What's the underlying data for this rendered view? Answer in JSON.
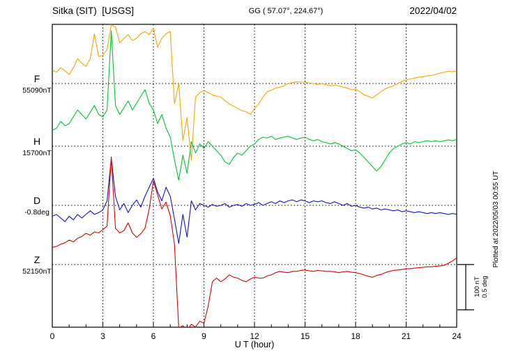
{
  "header": {
    "station_title": "Sitka (SIT)  [USGS]",
    "coords": "GG ( 57.07°, 224.67°)",
    "date": "2022/04/02"
  },
  "side_note": "Plotted at 2022/05/03 00:55 UT",
  "scale_bar": {
    "label_nt": "100 nT",
    "label_deg": "0.5 deg"
  },
  "chart_data": {
    "type": "line",
    "title": "Sitka (SIT) [USGS] magnetogram",
    "subtitle": "GG ( 57.07°, 224.67°)",
    "date": "2022/04/02",
    "xlabel": "U T (hour)",
    "x_range": [
      0,
      24
    ],
    "x_ticks": [
      0,
      3,
      6,
      9,
      12,
      15,
      18,
      21,
      24
    ],
    "x_step_hours": 0.25,
    "grid": "dotted vertical at 3h intervals, dotted horizontal at each trace baseline",
    "legend_position": "left margin, one label per trace",
    "scale": {
      "nT_per_division": 100,
      "deg_per_division": 0.5
    },
    "series": [
      {
        "label": "F",
        "baseline_label": "55090nT",
        "baseline_value": 55090,
        "unit": "nT",
        "color": "#f5a800",
        "offsets": [
          30,
          25,
          35,
          28,
          20,
          35,
          55,
          45,
          38,
          55,
          110,
          60,
          62,
          75,
          130,
          125,
          90,
          100,
          108,
          95,
          100,
          110,
          115,
          108,
          123,
          80,
          100,
          110,
          115,
          -45,
          0,
          -125,
          -75,
          -170,
          -30,
          -20,
          -15,
          -20,
          -25,
          -28,
          -30,
          -38,
          -45,
          -50,
          -55,
          -60,
          -62,
          -68,
          -55,
          -45,
          -30,
          -18,
          -15,
          -10,
          -8,
          -5,
          0,
          2,
          4,
          3,
          3,
          1,
          0,
          -2,
          0,
          -3,
          -5,
          -4,
          -5,
          -8,
          -10,
          -14,
          -12,
          -18,
          -25,
          -28,
          -32,
          -25,
          -18,
          -12,
          -8,
          -5,
          0,
          5,
          8,
          10,
          12,
          14,
          15,
          17,
          18,
          20,
          23,
          25,
          27,
          26,
          28
        ]
      },
      {
        "label": "H",
        "baseline_label": "15700nT",
        "baseline_value": 15700,
        "unit": "nT",
        "color": "#00c832",
        "offsets": [
          35,
          40,
          55,
          45,
          50,
          65,
          80,
          70,
          60,
          75,
          90,
          70,
          65,
          80,
          255,
          90,
          70,
          85,
          100,
          80,
          95,
          110,
          125,
          95,
          80,
          50,
          70,
          40,
          20,
          -30,
          -75,
          -20,
          -60,
          10,
          -15,
          5,
          -5,
          10,
          0,
          -10,
          -20,
          -35,
          -40,
          -25,
          -15,
          -20,
          -10,
          0,
          5,
          15,
          20,
          18,
          22,
          15,
          18,
          20,
          22,
          18,
          15,
          18,
          20,
          15,
          12,
          15,
          10,
          8,
          5,
          8,
          5,
          0,
          -5,
          -10,
          -8,
          -15,
          -25,
          -35,
          -45,
          -55,
          -45,
          -30,
          -15,
          -5,
          0,
          5,
          8,
          5,
          10,
          8,
          10,
          12,
          10,
          12,
          10,
          12,
          14,
          12,
          15
        ]
      },
      {
        "label": "D",
        "baseline_label": "-0.8deg",
        "baseline_value": -0.8,
        "unit": "deg",
        "color": "#1414d2",
        "offsets": [
          -0.12,
          -0.1,
          -0.14,
          -0.18,
          -0.12,
          -0.16,
          -0.1,
          -0.14,
          -0.1,
          -0.06,
          -0.1,
          -0.08,
          -0.05,
          0.05,
          0.52,
          0.1,
          -0.05,
          0.02,
          -0.08,
          0.0,
          0.06,
          -0.02,
          0.1,
          0.2,
          0.3,
          0.15,
          0.05,
          0.2,
          0.1,
          -0.15,
          -0.42,
          -0.1,
          -0.35,
          0.05,
          -0.05,
          0.02,
          0.0,
          -0.02,
          0.01,
          -0.01,
          0.0,
          0.02,
          -0.02,
          0.0,
          0.01,
          -0.01,
          0.02,
          0.0,
          0.01,
          0.03,
          0.0,
          0.02,
          0.04,
          0.02,
          0.05,
          0.03,
          0.05,
          0.06,
          0.04,
          0.06,
          0.05,
          0.03,
          0.05,
          0.04,
          0.05,
          0.03,
          0.02,
          0.04,
          0.02,
          0.0,
          0.02,
          -0.01,
          0.0,
          -0.02,
          -0.03,
          -0.02,
          -0.04,
          -0.03,
          -0.05,
          -0.04,
          -0.05,
          -0.06,
          -0.05,
          -0.07,
          -0.06,
          -0.07,
          -0.08,
          -0.07,
          -0.08,
          -0.09,
          -0.08,
          -0.09,
          -0.08,
          -0.09,
          -0.1,
          -0.09,
          -0.1
        ]
      },
      {
        "label": "Z",
        "baseline_label": "52150nT",
        "baseline_value": 52150,
        "unit": "nT",
        "color": "#e00000",
        "offsets": [
          38,
          40,
          45,
          48,
          54,
          50,
          58,
          62,
          69,
          65,
          72,
          70,
          77,
          85,
          238,
          80,
          70,
          75,
          92,
          70,
          60,
          68,
          80,
          123,
          185,
          154,
          123,
          138,
          108,
          45,
          -140,
          -135,
          -145,
          -132,
          -138,
          -125,
          -130,
          -92,
          -38,
          -30,
          -38,
          -32,
          -23,
          -28,
          -30,
          -35,
          -38,
          -32,
          -28,
          -30,
          -30,
          -25,
          -23,
          -18,
          -15,
          -17,
          -18,
          -15,
          -15,
          -13,
          -12,
          -14,
          -15,
          -13,
          -14,
          -15,
          -15,
          -16,
          -18,
          -16,
          -15,
          -17,
          -18,
          -20,
          -23,
          -26,
          -28,
          -24,
          -22,
          -18,
          -15,
          -13,
          -12,
          -11,
          -9,
          -9,
          -8,
          -7,
          -6,
          -5,
          -5,
          -4,
          -3,
          -2,
          3,
          8,
          15
        ]
      }
    ]
  }
}
